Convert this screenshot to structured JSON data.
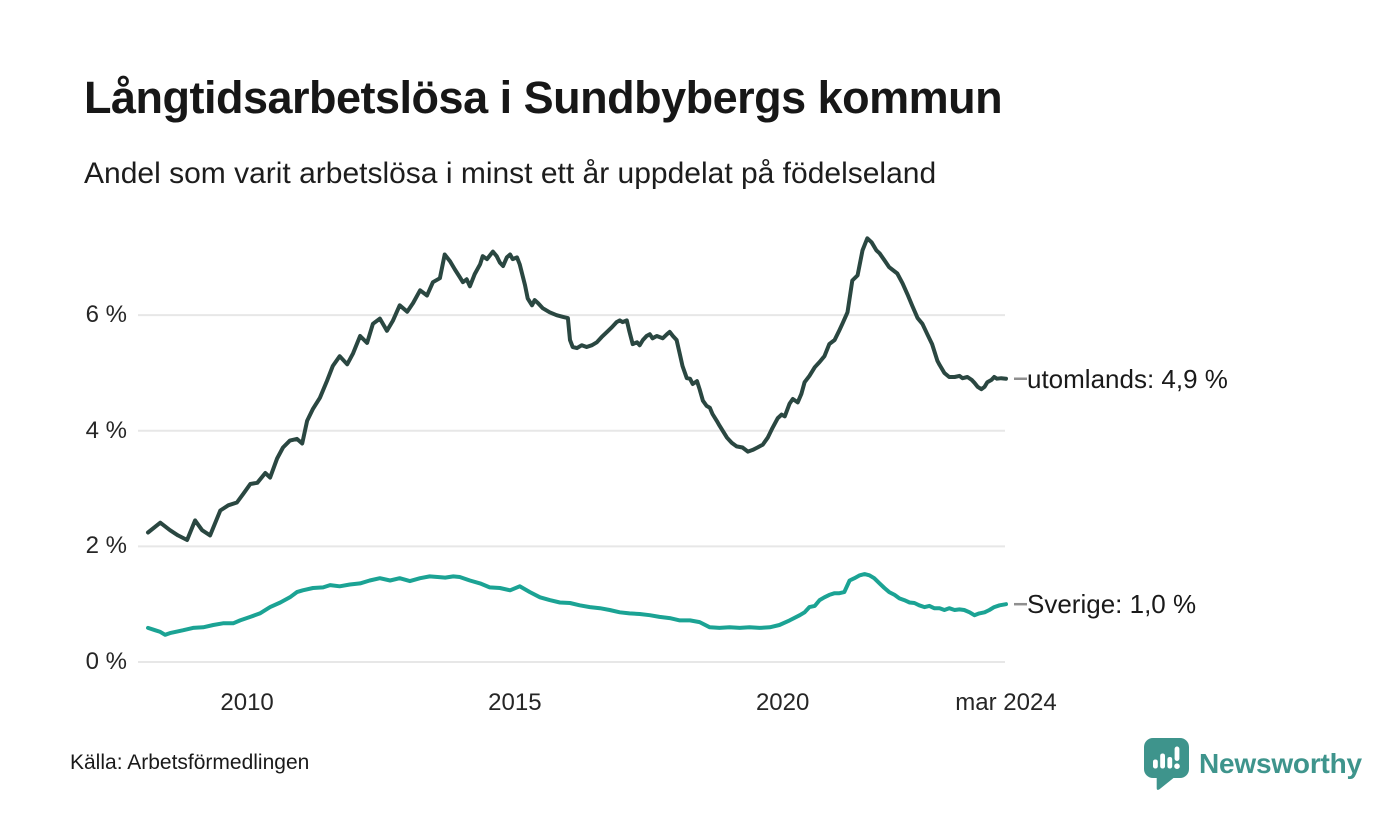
{
  "source": {
    "label": "Källa: Arbetsförmedlingen"
  },
  "brand": {
    "name": "Newsworthy",
    "color": "#3e948c"
  },
  "chart_data": {
    "type": "line",
    "title": "Långtidsarbetslösa i Sundbybergs kommun",
    "subtitle": "Andel som varit arbetslösa i minst ett år uppdelat på födelseland",
    "unit": "%",
    "xlim": [
      2008.15,
      2024.17
    ],
    "ylim": [
      0,
      7.75
    ],
    "grid": "horizontal",
    "legend_position": "right-end-labels",
    "y_ticks": [
      {
        "value": 0,
        "label": "0 %"
      },
      {
        "value": 2,
        "label": "2 %"
      },
      {
        "value": 4,
        "label": "4 %"
      },
      {
        "value": 6,
        "label": "6 %"
      }
    ],
    "x_ticks": [
      {
        "value": 2010,
        "label": "2010"
      },
      {
        "value": 2015,
        "label": "2015"
      },
      {
        "value": 2020,
        "label": "2020"
      },
      {
        "value": 2024.17,
        "label": "mar 2024"
      }
    ],
    "series": [
      {
        "name": "utomlands",
        "end_label": "utomlands: 4,9 %",
        "end_value_label": "4,9 %",
        "color": "#2a4741",
        "points": [
          [
            2008.15,
            2.24
          ],
          [
            2008.38,
            2.41
          ],
          [
            2008.56,
            2.28
          ],
          [
            2008.71,
            2.19
          ],
          [
            2008.88,
            2.11
          ],
          [
            2009.03,
            2.45
          ],
          [
            2009.16,
            2.28
          ],
          [
            2009.31,
            2.19
          ],
          [
            2009.5,
            2.62
          ],
          [
            2009.65,
            2.71
          ],
          [
            2009.81,
            2.76
          ],
          [
            2009.93,
            2.91
          ],
          [
            2010.06,
            3.08
          ],
          [
            2010.19,
            3.1
          ],
          [
            2010.34,
            3.27
          ],
          [
            2010.43,
            3.19
          ],
          [
            2010.56,
            3.52
          ],
          [
            2010.67,
            3.71
          ],
          [
            2010.8,
            3.83
          ],
          [
            2010.93,
            3.86
          ],
          [
            2011.03,
            3.78
          ],
          [
            2011.12,
            4.17
          ],
          [
            2011.23,
            4.38
          ],
          [
            2011.36,
            4.57
          ],
          [
            2011.49,
            4.86
          ],
          [
            2011.6,
            5.12
          ],
          [
            2011.73,
            5.29
          ],
          [
            2011.87,
            5.15
          ],
          [
            2011.98,
            5.34
          ],
          [
            2012.11,
            5.64
          ],
          [
            2012.24,
            5.52
          ],
          [
            2012.35,
            5.85
          ],
          [
            2012.48,
            5.94
          ],
          [
            2012.61,
            5.73
          ],
          [
            2012.72,
            5.9
          ],
          [
            2012.85,
            6.17
          ],
          [
            2012.99,
            6.06
          ],
          [
            2013.1,
            6.21
          ],
          [
            2013.23,
            6.43
          ],
          [
            2013.36,
            6.34
          ],
          [
            2013.47,
            6.57
          ],
          [
            2013.6,
            6.64
          ],
          [
            2013.69,
            7.05
          ],
          [
            2013.79,
            6.93
          ],
          [
            2013.88,
            6.79
          ],
          [
            2013.97,
            6.66
          ],
          [
            2014.03,
            6.57
          ],
          [
            2014.1,
            6.62
          ],
          [
            2014.16,
            6.5
          ],
          [
            2014.25,
            6.71
          ],
          [
            2014.35,
            6.88
          ],
          [
            2014.4,
            7.02
          ],
          [
            2014.48,
            6.97
          ],
          [
            2014.59,
            7.1
          ],
          [
            2014.66,
            7.02
          ],
          [
            2014.72,
            6.91
          ],
          [
            2014.78,
            6.85
          ],
          [
            2014.85,
            7.0
          ],
          [
            2014.91,
            7.05
          ],
          [
            2014.96,
            6.97
          ],
          [
            2015.04,
            7.0
          ],
          [
            2015.09,
            6.88
          ],
          [
            2015.19,
            6.52
          ],
          [
            2015.24,
            6.29
          ],
          [
            2015.32,
            6.17
          ],
          [
            2015.37,
            6.26
          ],
          [
            2015.43,
            6.21
          ],
          [
            2015.52,
            6.12
          ],
          [
            2015.65,
            6.05
          ],
          [
            2015.78,
            6.0
          ],
          [
            2015.9,
            5.97
          ],
          [
            2015.99,
            5.95
          ],
          [
            2016.03,
            5.57
          ],
          [
            2016.08,
            5.45
          ],
          [
            2016.16,
            5.43
          ],
          [
            2016.25,
            5.48
          ],
          [
            2016.34,
            5.45
          ],
          [
            2016.44,
            5.48
          ],
          [
            2016.53,
            5.53
          ],
          [
            2016.62,
            5.62
          ],
          [
            2016.72,
            5.71
          ],
          [
            2016.81,
            5.79
          ],
          [
            2016.9,
            5.88
          ],
          [
            2016.96,
            5.91
          ],
          [
            2017.01,
            5.88
          ],
          [
            2017.09,
            5.91
          ],
          [
            2017.14,
            5.71
          ],
          [
            2017.2,
            5.5
          ],
          [
            2017.28,
            5.53
          ],
          [
            2017.33,
            5.48
          ],
          [
            2017.39,
            5.57
          ],
          [
            2017.46,
            5.64
          ],
          [
            2017.52,
            5.67
          ],
          [
            2017.57,
            5.6
          ],
          [
            2017.65,
            5.64
          ],
          [
            2017.76,
            5.6
          ],
          [
            2017.84,
            5.67
          ],
          [
            2017.89,
            5.71
          ],
          [
            2017.95,
            5.64
          ],
          [
            2018.02,
            5.57
          ],
          [
            2018.08,
            5.33
          ],
          [
            2018.13,
            5.12
          ],
          [
            2018.21,
            4.91
          ],
          [
            2018.27,
            4.9
          ],
          [
            2018.32,
            4.81
          ],
          [
            2018.4,
            4.86
          ],
          [
            2018.45,
            4.72
          ],
          [
            2018.51,
            4.52
          ],
          [
            2018.58,
            4.43
          ],
          [
            2018.64,
            4.4
          ],
          [
            2018.69,
            4.29
          ],
          [
            2018.77,
            4.17
          ],
          [
            2018.82,
            4.09
          ],
          [
            2018.96,
            3.88
          ],
          [
            2019.05,
            3.79
          ],
          [
            2019.14,
            3.73
          ],
          [
            2019.25,
            3.71
          ],
          [
            2019.35,
            3.64
          ],
          [
            2019.44,
            3.67
          ],
          [
            2019.53,
            3.71
          ],
          [
            2019.63,
            3.76
          ],
          [
            2019.72,
            3.88
          ],
          [
            2019.81,
            4.05
          ],
          [
            2019.91,
            4.22
          ],
          [
            2019.98,
            4.28
          ],
          [
            2020.04,
            4.25
          ],
          [
            2020.13,
            4.47
          ],
          [
            2020.19,
            4.55
          ],
          [
            2020.28,
            4.49
          ],
          [
            2020.35,
            4.64
          ],
          [
            2020.41,
            4.84
          ],
          [
            2020.5,
            4.95
          ],
          [
            2020.6,
            5.1
          ],
          [
            2020.69,
            5.19
          ],
          [
            2020.78,
            5.29
          ],
          [
            2020.87,
            5.5
          ],
          [
            2020.97,
            5.57
          ],
          [
            2021.06,
            5.74
          ],
          [
            2021.12,
            5.86
          ],
          [
            2021.21,
            6.05
          ],
          [
            2021.3,
            6.6
          ],
          [
            2021.4,
            6.69
          ],
          [
            2021.49,
            7.12
          ],
          [
            2021.58,
            7.33
          ],
          [
            2021.66,
            7.26
          ],
          [
            2021.75,
            7.12
          ],
          [
            2021.81,
            7.07
          ],
          [
            2021.9,
            6.95
          ],
          [
            2021.99,
            6.83
          ],
          [
            2022.14,
            6.72
          ],
          [
            2022.24,
            6.55
          ],
          [
            2022.33,
            6.36
          ],
          [
            2022.42,
            6.16
          ],
          [
            2022.52,
            5.95
          ],
          [
            2022.61,
            5.85
          ],
          [
            2022.7,
            5.67
          ],
          [
            2022.79,
            5.5
          ],
          [
            2022.89,
            5.21
          ],
          [
            2022.93,
            5.14
          ],
          [
            2023.02,
            5.0
          ],
          [
            2023.11,
            4.93
          ],
          [
            2023.21,
            4.93
          ],
          [
            2023.3,
            4.95
          ],
          [
            2023.36,
            4.91
          ],
          [
            2023.45,
            4.93
          ],
          [
            2023.53,
            4.88
          ],
          [
            2023.58,
            4.83
          ],
          [
            2023.64,
            4.76
          ],
          [
            2023.71,
            4.72
          ],
          [
            2023.77,
            4.76
          ],
          [
            2023.82,
            4.84
          ],
          [
            2023.9,
            4.88
          ],
          [
            2023.95,
            4.93
          ],
          [
            2024.0,
            4.9
          ],
          [
            2024.08,
            4.91
          ],
          [
            2024.17,
            4.9
          ]
        ]
      },
      {
        "name": "sverige",
        "end_label": "Sverige: 1,0 %",
        "end_value_label": "1,0 %",
        "color": "#1ba394",
        "points": [
          [
            2008.15,
            0.59
          ],
          [
            2008.28,
            0.55
          ],
          [
            2008.38,
            0.52
          ],
          [
            2008.47,
            0.47
          ],
          [
            2008.56,
            0.5
          ],
          [
            2008.66,
            0.52
          ],
          [
            2008.81,
            0.55
          ],
          [
            2008.99,
            0.59
          ],
          [
            2009.18,
            0.6
          ],
          [
            2009.37,
            0.64
          ],
          [
            2009.55,
            0.67
          ],
          [
            2009.74,
            0.67
          ],
          [
            2009.87,
            0.72
          ],
          [
            2010.06,
            0.78
          ],
          [
            2010.24,
            0.84
          ],
          [
            2010.43,
            0.95
          ],
          [
            2010.62,
            1.03
          ],
          [
            2010.8,
            1.12
          ],
          [
            2010.93,
            1.21
          ],
          [
            2011.04,
            1.24
          ],
          [
            2011.23,
            1.28
          ],
          [
            2011.42,
            1.29
          ],
          [
            2011.55,
            1.33
          ],
          [
            2011.73,
            1.31
          ],
          [
            2011.92,
            1.34
          ],
          [
            2012.11,
            1.36
          ],
          [
            2012.29,
            1.41
          ],
          [
            2012.48,
            1.45
          ],
          [
            2012.67,
            1.41
          ],
          [
            2012.85,
            1.45
          ],
          [
            2013.04,
            1.4
          ],
          [
            2013.23,
            1.45
          ],
          [
            2013.41,
            1.48
          ],
          [
            2013.56,
            1.47
          ],
          [
            2013.7,
            1.46
          ],
          [
            2013.85,
            1.48
          ],
          [
            2013.97,
            1.47
          ],
          [
            2014.16,
            1.41
          ],
          [
            2014.35,
            1.36
          ],
          [
            2014.53,
            1.29
          ],
          [
            2014.72,
            1.28
          ],
          [
            2014.91,
            1.24
          ],
          [
            2015.09,
            1.31
          ],
          [
            2015.28,
            1.21
          ],
          [
            2015.47,
            1.12
          ],
          [
            2015.65,
            1.07
          ],
          [
            2015.84,
            1.03
          ],
          [
            2016.03,
            1.02
          ],
          [
            2016.21,
            0.98
          ],
          [
            2016.4,
            0.95
          ],
          [
            2016.59,
            0.93
          ],
          [
            2016.77,
            0.9
          ],
          [
            2016.96,
            0.86
          ],
          [
            2017.14,
            0.84
          ],
          [
            2017.33,
            0.83
          ],
          [
            2017.52,
            0.81
          ],
          [
            2017.7,
            0.78
          ],
          [
            2017.89,
            0.76
          ],
          [
            2018.08,
            0.72
          ],
          [
            2018.27,
            0.72
          ],
          [
            2018.45,
            0.69
          ],
          [
            2018.64,
            0.6
          ],
          [
            2018.82,
            0.59
          ],
          [
            2019.01,
            0.6
          ],
          [
            2019.2,
            0.59
          ],
          [
            2019.38,
            0.6
          ],
          [
            2019.57,
            0.59
          ],
          [
            2019.76,
            0.6
          ],
          [
            2019.94,
            0.64
          ],
          [
            2020.13,
            0.72
          ],
          [
            2020.32,
            0.81
          ],
          [
            2020.41,
            0.86
          ],
          [
            2020.5,
            0.95
          ],
          [
            2020.6,
            0.97
          ],
          [
            2020.69,
            1.07
          ],
          [
            2020.78,
            1.12
          ],
          [
            2020.87,
            1.16
          ],
          [
            2020.97,
            1.19
          ],
          [
            2021.06,
            1.19
          ],
          [
            2021.15,
            1.21
          ],
          [
            2021.25,
            1.41
          ],
          [
            2021.34,
            1.45
          ],
          [
            2021.44,
            1.5
          ],
          [
            2021.53,
            1.52
          ],
          [
            2021.62,
            1.5
          ],
          [
            2021.71,
            1.45
          ],
          [
            2021.81,
            1.36
          ],
          [
            2021.9,
            1.28
          ],
          [
            2021.99,
            1.21
          ],
          [
            2022.09,
            1.16
          ],
          [
            2022.18,
            1.1
          ],
          [
            2022.27,
            1.07
          ],
          [
            2022.37,
            1.03
          ],
          [
            2022.46,
            1.02
          ],
          [
            2022.55,
            0.98
          ],
          [
            2022.65,
            0.95
          ],
          [
            2022.74,
            0.97
          ],
          [
            2022.83,
            0.93
          ],
          [
            2022.93,
            0.93
          ],
          [
            2023.02,
            0.9
          ],
          [
            2023.11,
            0.93
          ],
          [
            2023.21,
            0.9
          ],
          [
            2023.3,
            0.91
          ],
          [
            2023.39,
            0.9
          ],
          [
            2023.49,
            0.86
          ],
          [
            2023.58,
            0.81
          ],
          [
            2023.67,
            0.84
          ],
          [
            2023.77,
            0.86
          ],
          [
            2023.86,
            0.9
          ],
          [
            2023.95,
            0.95
          ],
          [
            2024.05,
            0.98
          ],
          [
            2024.17,
            1.0
          ]
        ]
      }
    ]
  }
}
